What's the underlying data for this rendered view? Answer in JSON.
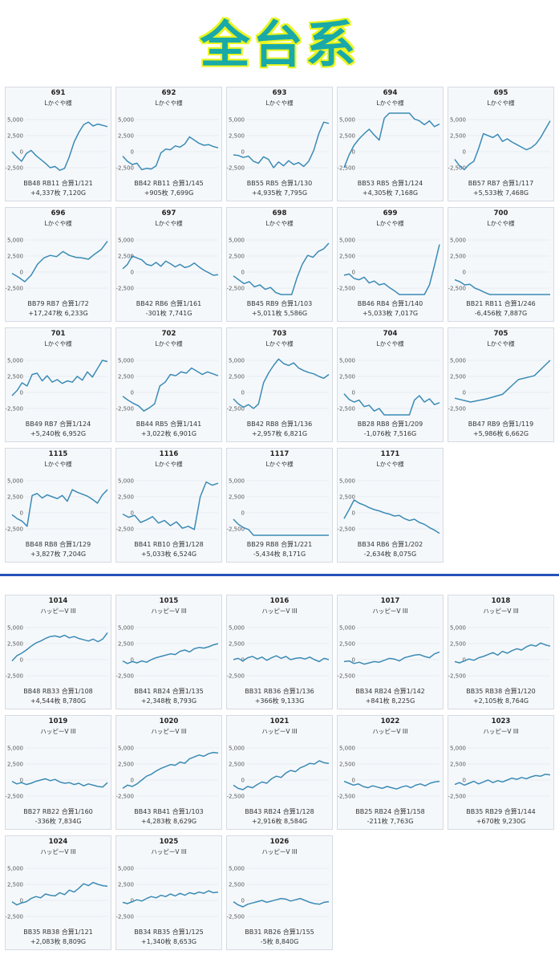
{
  "header": {
    "title": "全台系",
    "title_color": "#19a9a9",
    "outline_color": "#e9f51f"
  },
  "colors": {
    "line": "#3b8bb5",
    "card_bg": "#f5f8fb",
    "divider": "#2353b8"
  },
  "chart_data": [
    {
      "type": "line",
      "title": "691",
      "subtitle": "Lかぐや様",
      "stats1": "BB48 RB11 合算1/121",
      "stats2": "+4,337枚 7,120G",
      "yticks": [
        "5,000",
        "2,500",
        "0",
        "-2,500"
      ],
      "ylim": [
        -3500,
        6000
      ],
      "y": [
        0,
        -800,
        -1500,
        -300,
        200,
        -600,
        -1200,
        -1800,
        -2500,
        -2300,
        -2900,
        -2600,
        -800,
        1500,
        3000,
        4200,
        4600,
        4000,
        4300,
        4100,
        3900
      ]
    },
    {
      "type": "line",
      "title": "692",
      "subtitle": "Lかぐや様",
      "stats1": "BB42 RB11 合算1/145",
      "stats2": "+905枚 7,699G",
      "yticks": [
        "5,000",
        "2,500",
        "0",
        "-2,500"
      ],
      "ylim": [
        -3500,
        6000
      ],
      "y": [
        -700,
        -1500,
        -2000,
        -1800,
        -2800,
        -2600,
        -2700,
        -2200,
        -200,
        400,
        300,
        900,
        700,
        1200,
        2300,
        1800,
        1300,
        1000,
        1100,
        800,
        600
      ]
    },
    {
      "type": "line",
      "title": "693",
      "subtitle": "Lかぐや様",
      "stats1": "BB55 RB5 合算1/130",
      "stats2": "+4,935枚 7,795G",
      "yticks": [
        "5,000",
        "2,500",
        "0",
        "-2,500"
      ],
      "ylim": [
        -3500,
        6000
      ],
      "y": [
        -500,
        -600,
        -900,
        -700,
        -1500,
        -1800,
        -800,
        -1200,
        -2500,
        -1600,
        -2200,
        -1400,
        -2000,
        -1700,
        -2300,
        -1500,
        200,
        2800,
        4600,
        4400
      ]
    },
    {
      "type": "line",
      "title": "694",
      "subtitle": "Lかぐや様",
      "stats1": "BB53 RB5 合算1/124",
      "stats2": "+4,305枚 7,168G",
      "yticks": [
        "5,000",
        "2,500",
        "0",
        "-2,500"
      ],
      "ylim": [
        -3500,
        6000
      ],
      "y": [
        -2500,
        -500,
        1000,
        2000,
        2800,
        3500,
        2600,
        1800,
        5200,
        6000,
        6000,
        6000,
        6000,
        6000,
        5100,
        4800,
        4200,
        4800,
        3900,
        4300
      ]
    },
    {
      "type": "line",
      "title": "695",
      "subtitle": "Lかぐや様",
      "stats1": "BB57 RB7 合算1/117",
      "stats2": "+5,533枚 7,468G",
      "yticks": [
        "5,000",
        "2,500",
        "0",
        "-2,500"
      ],
      "ylim": [
        -3500,
        6000
      ],
      "y": [
        -1200,
        -2200,
        -2800,
        -2000,
        -1500,
        500,
        2800,
        2500,
        2200,
        2700,
        1600,
        2000,
        1500,
        1100,
        700,
        300,
        600,
        1200,
        2200,
        3500,
        4800
      ]
    },
    {
      "type": "line",
      "title": "696",
      "subtitle": "Lかぐや様",
      "stats1": "BB79 RB7 合算1/72",
      "stats2": "+17,247枚 6,233G",
      "yticks": [
        "5,000",
        "2,500",
        "0",
        "-2,500"
      ],
      "ylim": [
        -3500,
        6000
      ],
      "y": [
        -200,
        -800,
        -1500,
        -500,
        1200,
        2200,
        2600,
        2400,
        3200,
        2600,
        2300,
        2200,
        2000,
        2800,
        3500,
        4800
      ]
    },
    {
      "type": "line",
      "title": "697",
      "subtitle": "Lかぐや様",
      "stats1": "BB42 RB6 合算1/161",
      "stats2": "-301枚 7,741G",
      "yticks": [
        "5,000",
        "2,500",
        "0",
        "-2,500"
      ],
      "ylim": [
        -3500,
        6000
      ],
      "y": [
        500,
        1200,
        2500,
        2200,
        1900,
        1200,
        1000,
        1500,
        900,
        1700,
        1300,
        800,
        1200,
        700,
        900,
        1400,
        800,
        300,
        -100,
        -500,
        -400
      ]
    },
    {
      "type": "line",
      "title": "698",
      "subtitle": "Lかぐや様",
      "stats1": "BB45 RB9 合算1/103",
      "stats2": "+5,011枚 5,586G",
      "yticks": [
        "5,000",
        "2,500",
        "0",
        "-2,500"
      ],
      "ylim": [
        -3500,
        6000
      ],
      "y": [
        -600,
        -1200,
        -1800,
        -1500,
        -2300,
        -2000,
        -2700,
        -2400,
        -3200,
        -3500,
        -3500,
        -3500,
        -900,
        1200,
        2600,
        2300,
        3200,
        3600,
        4500
      ]
    },
    {
      "type": "line",
      "title": "699",
      "subtitle": "Lかぐや様",
      "stats1": "BB46 RB4 合算1/140",
      "stats2": "+5,033枚 7,017G",
      "yticks": [
        "5,000",
        "2,500",
        "0",
        "-2,500"
      ],
      "ylim": [
        -3500,
        6000
      ],
      "y": [
        -500,
        -300,
        -1000,
        -1200,
        -800,
        -1700,
        -1400,
        -2000,
        -1800,
        -2400,
        -2900,
        -3500,
        -3500,
        -3500,
        -3500,
        -3500,
        -3500,
        -2000,
        1000,
        4300
      ]
    },
    {
      "type": "line",
      "title": "700",
      "subtitle": "Lかぐや様",
      "stats1": "BB21 RB11 合算1/246",
      "stats2": "-6,456枚 7,887G",
      "yticks": [
        "5,000",
        "2,500",
        "0",
        "-2,500"
      ],
      "ylim": [
        -3500,
        6000
      ],
      "y": [
        -1200,
        -1500,
        -2000,
        -1900,
        -2500,
        -2800,
        -3200,
        -3500,
        -3500,
        -3500,
        -3500,
        -3500,
        -3500,
        -3500,
        -3500,
        -3500,
        -3500,
        -3500,
        -3500,
        -3500
      ]
    },
    {
      "type": "line",
      "title": "701",
      "subtitle": "Lかぐや様",
      "stats1": "BB49 RB7 合算1/124",
      "stats2": "+5,240枚 6,952G",
      "yticks": [
        "5,000",
        "2,500",
        "0",
        "-2,500"
      ],
      "ylim": [
        -3500,
        6000
      ],
      "y": [
        -500,
        300,
        1500,
        1000,
        2800,
        3000,
        1800,
        2600,
        1600,
        2000,
        1400,
        1800,
        1600,
        2500,
        1900,
        3200,
        2400,
        3700,
        5000,
        4800
      ]
    },
    {
      "type": "line",
      "title": "702",
      "subtitle": "Lかぐや様",
      "stats1": "BB44 RB5 合算1/141",
      "stats2": "+3,022枚 6,901G",
      "yticks": [
        "5,000",
        "2,500",
        "0",
        "-2,500"
      ],
      "ylim": [
        -3500,
        6000
      ],
      "y": [
        -600,
        -1200,
        -1700,
        -2100,
        -2900,
        -2400,
        -1800,
        1000,
        1600,
        2800,
        2600,
        3200,
        3000,
        3800,
        3300,
        2800,
        3200,
        2900,
        2600
      ]
    },
    {
      "type": "line",
      "title": "703",
      "subtitle": "Lかぐや様",
      "stats1": "BB42 RB8 合算1/136",
      "stats2": "+2,957枚 6,821G",
      "yticks": [
        "5,000",
        "2,500",
        "0",
        "-2,500"
      ],
      "ylim": [
        -3500,
        6000
      ],
      "y": [
        -1000,
        -1800,
        -2300,
        -1900,
        -2500,
        -1800,
        1500,
        3000,
        4200,
        5200,
        4500,
        4200,
        4600,
        3800,
        3400,
        3100,
        2900,
        2500,
        2200,
        2800
      ]
    },
    {
      "type": "line",
      "title": "704",
      "subtitle": "Lかぐや様",
      "stats1": "BB28 RB8 合算1/209",
      "stats2": "-1,076枚 7,516G",
      "yticks": [
        "5,000",
        "2,500",
        "0",
        "-2,500"
      ],
      "ylim": [
        -3500,
        6000
      ],
      "y": [
        -200,
        -1100,
        -1500,
        -1200,
        -2200,
        -2000,
        -2900,
        -2500,
        -3500,
        -3500,
        -3500,
        -3500,
        -3500,
        -3500,
        -1200,
        -500,
        -1500,
        -1000,
        -1900,
        -1600
      ]
    },
    {
      "type": "line",
      "title": "705",
      "subtitle": "Lかぐや様",
      "stats1": "BB47 RB9 合算1/119",
      "stats2": "+5,986枚 6,662G",
      "yticks": [
        "5,000",
        "2,500",
        "0",
        "-2,500"
      ],
      "ylim": [
        -3500,
        6000
      ],
      "y": [
        -900,
        -1500,
        -1000,
        -300,
        2000,
        2600,
        5000
      ]
    },
    {
      "type": "line",
      "title": "1115",
      "subtitle": "Lかぐや様",
      "stats1": "BB48 RB8 合算1/129",
      "stats2": "+3,827枚 7,204G",
      "yticks": [
        "5,000",
        "2,500",
        "0",
        "-2,500"
      ],
      "ylim": [
        -3500,
        6000
      ],
      "y": [
        -300,
        -900,
        -1300,
        -2100,
        2700,
        3000,
        2300,
        2800,
        2500,
        2200,
        2700,
        1800,
        3600,
        3200,
        2900,
        2600,
        2100,
        1500,
        2800,
        3600
      ]
    },
    {
      "type": "line",
      "title": "1116",
      "subtitle": "Lかぐや様",
      "stats1": "BB41 RB10 合算1/128",
      "stats2": "+5,033枚 6,524G",
      "yticks": [
        "5,000",
        "2,500",
        "0",
        "-2,500"
      ],
      "ylim": [
        -3500,
        6000
      ],
      "y": [
        -200,
        -700,
        -400,
        -1500,
        -1100,
        -600,
        -1600,
        -1200,
        -2000,
        -1400,
        -2400,
        -2100,
        -2600,
        2500,
        4800,
        4300,
        4600
      ]
    },
    {
      "type": "line",
      "title": "1117",
      "subtitle": "Lかぐや様",
      "stats1": "BB29 RB8 合算1/221",
      "stats2": "-5,434枚 8,171G",
      "yticks": [
        "5,000",
        "2,500",
        "0",
        "-2,500"
      ],
      "ylim": [
        -3500,
        6000
      ],
      "y": [
        -1000,
        -1800,
        -2300,
        -2600,
        -3500,
        -3500,
        -3500,
        -3500,
        -3500,
        -3500,
        -3500,
        -3500,
        -3500,
        -3500,
        -3500,
        -3500,
        -3500,
        -3500,
        -3500,
        -3500
      ]
    },
    {
      "type": "line",
      "title": "1171",
      "subtitle": "Lかぐや様",
      "stats1": "BB34 RB6 合算1/202",
      "stats2": "-2,634枚 8,075G",
      "yticks": [
        "5,000",
        "2,500",
        "0",
        "-2,500"
      ],
      "ylim": [
        -3500,
        6000
      ],
      "y": [
        -900,
        500,
        2000,
        1500,
        1200,
        800,
        500,
        300,
        0,
        -200,
        -500,
        -400,
        -900,
        -1200,
        -1000,
        -1500,
        -1800,
        -2300,
        -2700,
        -3200
      ]
    },
    {
      "type": "line",
      "title": "1014",
      "subtitle": "ハッピーV III",
      "stats1": "BB48 RB33 合算1/108",
      "stats2": "+4,544枚 8,780G",
      "yticks": [
        "5,000",
        "2,500",
        "0",
        "-2,500"
      ],
      "ylim": [
        -3500,
        6000
      ],
      "y": [
        -200,
        600,
        1000,
        1500,
        2100,
        2600,
        2900,
        3300,
        3600,
        3700,
        3500,
        3800,
        3400,
        3600,
        3300,
        3100,
        2900,
        3200,
        2800,
        3200,
        4200
      ]
    },
    {
      "type": "line",
      "title": "1015",
      "subtitle": "ハッピーV III",
      "stats1": "BB41 RB24 合算1/135",
      "stats2": "+2,348枚 8,793G",
      "yticks": [
        "5,000",
        "2,500",
        "0",
        "-2,500"
      ],
      "ylim": [
        -3500,
        6000
      ],
      "y": [
        -200,
        -600,
        -300,
        -500,
        -200,
        -400,
        0,
        300,
        500,
        700,
        900,
        800,
        1300,
        1500,
        1200,
        1700,
        1900,
        1800,
        2000,
        2300,
        2500
      ]
    },
    {
      "type": "line",
      "title": "1016",
      "subtitle": "ハッピーV III",
      "stats1": "BB31 RB36 合算1/136",
      "stats2": "+366枚 9,133G",
      "yticks": [
        "5,000",
        "2,500",
        "0",
        "-2,500"
      ],
      "ylim": [
        -3500,
        6000
      ],
      "y": [
        0,
        200,
        -200,
        300,
        500,
        100,
        400,
        -100,
        300,
        600,
        200,
        500,
        0,
        200,
        300,
        100,
        400,
        0,
        -300,
        200,
        0
      ]
    },
    {
      "type": "line",
      "title": "1017",
      "subtitle": "ハッピーV III",
      "stats1": "BB34 RB24 合算1/142",
      "stats2": "+841枚 8,225G",
      "yticks": [
        "5,000",
        "2,500",
        "0",
        "-2,500"
      ],
      "ylim": [
        -3500,
        6000
      ],
      "y": [
        -300,
        -200,
        -600,
        -400,
        -700,
        -500,
        -300,
        -400,
        -100,
        200,
        100,
        -200,
        300,
        500,
        700,
        800,
        500,
        300,
        900,
        1200
      ]
    },
    {
      "type": "line",
      "title": "1018",
      "subtitle": "ハッピーV III",
      "stats1": "BB35 RB38 合算1/120",
      "stats2": "+2,105枚 8,764G",
      "yticks": [
        "5,000",
        "2,500",
        "0",
        "-2,500"
      ],
      "ylim": [
        -3500,
        6000
      ],
      "y": [
        -300,
        -500,
        -200,
        100,
        -100,
        300,
        500,
        800,
        1100,
        700,
        1300,
        1000,
        1400,
        1700,
        1500,
        2000,
        2300,
        2100,
        2600,
        2300,
        2100
      ]
    },
    {
      "type": "line",
      "title": "1019",
      "subtitle": "ハッピーV III",
      "stats1": "BB27 RB22 合算1/160",
      "stats2": "-336枚 7,834G",
      "yticks": [
        "5,000",
        "2,500",
        "0",
        "-2,500"
      ],
      "ylim": [
        -3500,
        6000
      ],
      "y": [
        -200,
        -600,
        -400,
        -700,
        -500,
        -200,
        0,
        200,
        -100,
        100,
        -300,
        -500,
        -400,
        -700,
        -500,
        -900,
        -600,
        -800,
        -1000,
        -1100,
        -400
      ]
    },
    {
      "type": "line",
      "title": "1020",
      "subtitle": "ハッピーV III",
      "stats1": "BB43 RB41 合算1/103",
      "stats2": "+4,283枚 8,629G",
      "yticks": [
        "5,000",
        "2,500",
        "0",
        "-2,500"
      ],
      "ylim": [
        -3500,
        6000
      ],
      "y": [
        -1300,
        -800,
        -1000,
        -600,
        0,
        600,
        900,
        1400,
        1800,
        2100,
        2400,
        2300,
        2800,
        2600,
        3300,
        3600,
        3900,
        3700,
        4100,
        4300,
        4200
      ]
    },
    {
      "type": "line",
      "title": "1021",
      "subtitle": "ハッピーV III",
      "stats1": "BB43 RB24 合算1/128",
      "stats2": "+2,916枚 8,584G",
      "yticks": [
        "5,000",
        "2,500",
        "0",
        "-2,500"
      ],
      "ylim": [
        -3500,
        6000
      ],
      "y": [
        -800,
        -1300,
        -1500,
        -1000,
        -1200,
        -700,
        -300,
        -500,
        200,
        600,
        400,
        1100,
        1500,
        1300,
        1900,
        2200,
        2600,
        2500,
        3000,
        2700,
        2600
      ]
    },
    {
      "type": "line",
      "title": "1022",
      "subtitle": "ハッピーV III",
      "stats1": "BB25 RB24 合算1/158",
      "stats2": "-211枚 7,763G",
      "yticks": [
        "5,000",
        "2,500",
        "0",
        "-2,500"
      ],
      "ylim": [
        -3500,
        6000
      ],
      "y": [
        -200,
        -500,
        -800,
        -600,
        -1000,
        -1200,
        -900,
        -1100,
        -1300,
        -1000,
        -1200,
        -1400,
        -1100,
        -900,
        -1200,
        -800,
        -600,
        -900,
        -500,
        -300,
        -200
      ]
    },
    {
      "type": "line",
      "title": "1023",
      "subtitle": "ハッピーV III",
      "stats1": "BB35 RB29 合算1/144",
      "stats2": "+670枚 9,230G",
      "yticks": [
        "5,000",
        "2,500",
        "0",
        "-2,500"
      ],
      "ylim": [
        -3500,
        6000
      ],
      "y": [
        -700,
        -400,
        -800,
        -500,
        -200,
        -600,
        -300,
        0,
        -400,
        -100,
        -300,
        0,
        300,
        100,
        400,
        200,
        500,
        700,
        600,
        900,
        800
      ]
    },
    {
      "type": "line",
      "title": "1024",
      "subtitle": "ハッピーV III",
      "stats1": "BB35 RB38 合算1/121",
      "stats2": "+2,083枚 8,809G",
      "yticks": [
        "5,000",
        "2,500",
        "0",
        "-2,500"
      ],
      "ylim": [
        -3500,
        6000
      ],
      "y": [
        -200,
        -700,
        -400,
        -200,
        300,
        600,
        400,
        1000,
        800,
        700,
        1200,
        900,
        1600,
        1300,
        1900,
        2600,
        2300,
        2800,
        2500,
        2300,
        2200
      ]
    },
    {
      "type": "line",
      "title": "1025",
      "subtitle": "ハッピーV III",
      "stats1": "BB34 RB35 合算1/125",
      "stats2": "+1,340枚 8,653G",
      "yticks": [
        "5,000",
        "2,500",
        "0",
        "-2,500"
      ],
      "ylim": [
        -3500,
        6000
      ],
      "y": [
        -300,
        -500,
        -200,
        100,
        -100,
        300,
        600,
        400,
        800,
        600,
        1000,
        700,
        1100,
        800,
        1200,
        1000,
        1300,
        1100,
        1500,
        1200,
        1300
      ]
    },
    {
      "type": "line",
      "title": "1026",
      "subtitle": "ハッピーV III",
      "stats1": "BB31 RB26 合算1/155",
      "stats2": "-5枚 8,840G",
      "yticks": [
        "5,000",
        "2,500",
        "0",
        "-2,500"
      ],
      "ylim": [
        -3500,
        6000
      ],
      "y": [
        -200,
        -700,
        -1000,
        -600,
        -400,
        -200,
        0,
        -300,
        -100,
        100,
        300,
        200,
        -100,
        100,
        300,
        0,
        -300,
        -500,
        -600,
        -300,
        -200
      ]
    }
  ]
}
